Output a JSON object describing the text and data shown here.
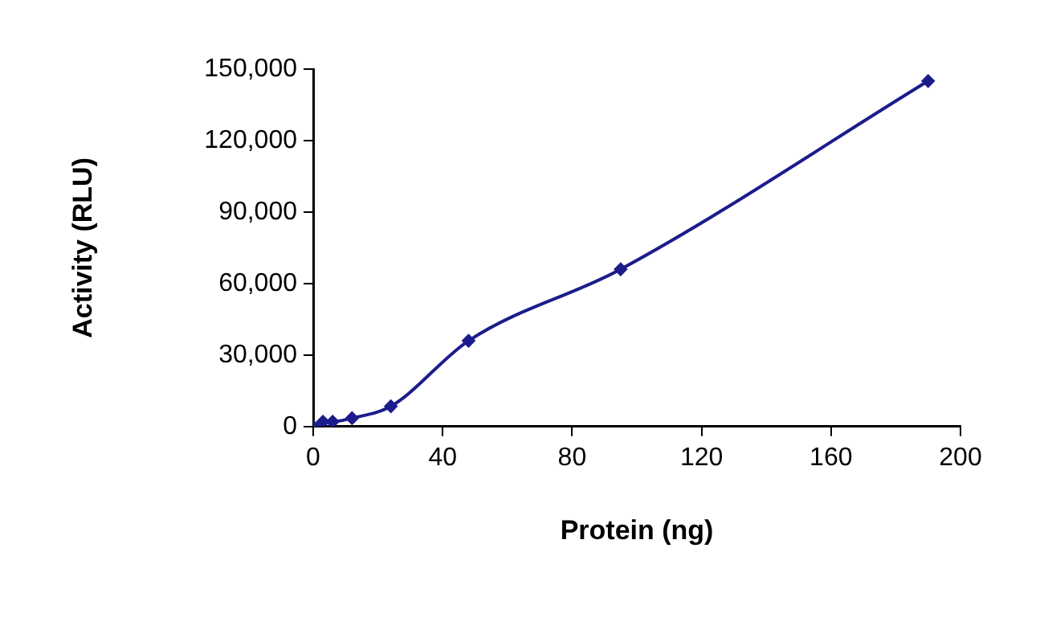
{
  "chart_data": {
    "type": "line",
    "xlabel": "Protein (ng)",
    "ylabel": "Activity (RLU)",
    "x": [
      0,
      3,
      6,
      12,
      24,
      48,
      95,
      190
    ],
    "series": [
      {
        "color": "#1c1c8c",
        "values": [
          0,
          2000,
          2000,
          3500,
          8500,
          36000,
          66000,
          145000
        ]
      }
    ],
    "xlim": [
      0,
      200
    ],
    "xticks": [
      0,
      40,
      80,
      120,
      160,
      200
    ],
    "ylim": [
      0,
      150000
    ],
    "yticks": [
      {
        "value": 0,
        "label": "0"
      },
      {
        "value": 30000,
        "label": "30,000"
      },
      {
        "value": 60000,
        "label": "60,000"
      },
      {
        "value": 90000,
        "label": "90,000"
      },
      {
        "value": 120000,
        "label": "120,000"
      },
      {
        "value": 150000,
        "label": "150,000"
      }
    ],
    "grid": false,
    "legend": false,
    "marker": "diamond",
    "line_style": "solid"
  }
}
